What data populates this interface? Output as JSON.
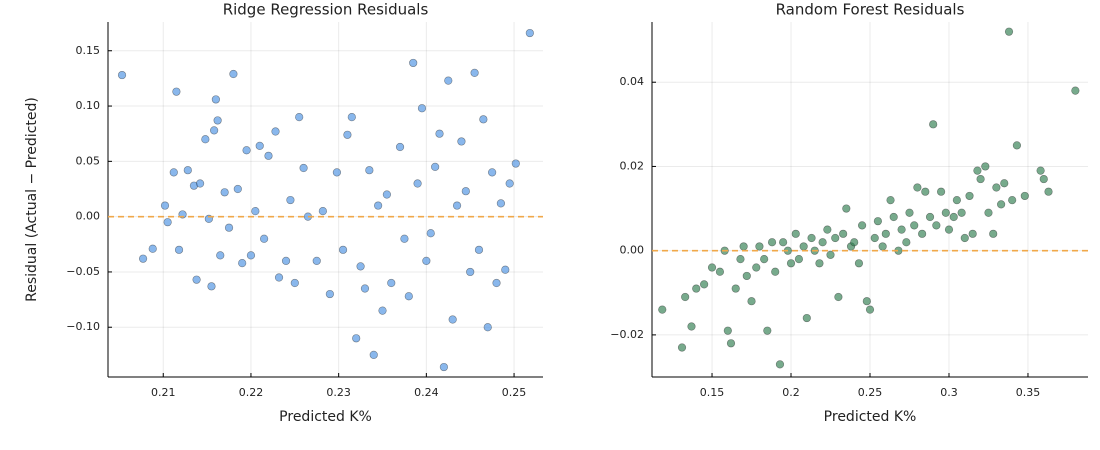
{
  "chart_data": [
    {
      "type": "scatter",
      "title": "Ridge Regression Residuals",
      "x_label": "Predicted K%",
      "y_label": "Residual (Actual − Predicted)",
      "x": [
        0.2053,
        0.2077,
        0.2088,
        0.2102,
        0.2105,
        0.2112,
        0.2115,
        0.2118,
        0.2122,
        0.2128,
        0.2135,
        0.2138,
        0.2142,
        0.2148,
        0.2152,
        0.2155,
        0.2158,
        0.216,
        0.2162,
        0.2165,
        0.217,
        0.2175,
        0.218,
        0.2185,
        0.219,
        0.2195,
        0.22,
        0.2205,
        0.221,
        0.2215,
        0.222,
        0.2228,
        0.2232,
        0.224,
        0.2245,
        0.225,
        0.2255,
        0.226,
        0.2265,
        0.2275,
        0.2282,
        0.229,
        0.2298,
        0.2305,
        0.231,
        0.2315,
        0.232,
        0.2325,
        0.233,
        0.2335,
        0.234,
        0.2345,
        0.235,
        0.2355,
        0.236,
        0.237,
        0.2375,
        0.238,
        0.2385,
        0.239,
        0.2395,
        0.24,
        0.2405,
        0.241,
        0.2415,
        0.242,
        0.2425,
        0.243,
        0.2435,
        0.244,
        0.2445,
        0.245,
        0.2455,
        0.246,
        0.2465,
        0.247,
        0.2475,
        0.248,
        0.2485,
        0.249,
        0.2495,
        0.2502,
        0.2518
      ],
      "values": [
        0.128,
        -0.038,
        -0.029,
        0.01,
        -0.005,
        0.04,
        0.113,
        -0.03,
        0.002,
        0.042,
        0.028,
        -0.057,
        0.03,
        0.07,
        -0.002,
        -0.063,
        0.078,
        0.106,
        0.087,
        -0.035,
        0.022,
        -0.01,
        0.129,
        0.025,
        -0.042,
        0.06,
        -0.035,
        0.005,
        0.064,
        -0.02,
        0.055,
        0.077,
        -0.055,
        -0.04,
        0.015,
        -0.06,
        0.09,
        0.044,
        0.0,
        -0.04,
        0.005,
        -0.07,
        0.04,
        -0.03,
        0.074,
        0.09,
        -0.11,
        -0.045,
        -0.065,
        0.042,
        -0.125,
        0.01,
        -0.085,
        0.02,
        -0.06,
        0.063,
        -0.02,
        -0.072,
        0.139,
        0.03,
        0.098,
        -0.04,
        -0.015,
        0.045,
        0.075,
        -0.136,
        0.123,
        -0.093,
        0.01,
        0.068,
        0.023,
        -0.05,
        0.13,
        -0.03,
        0.088,
        -0.1,
        0.04,
        -0.06,
        0.012,
        -0.048,
        0.03,
        0.048,
        0.166
      ],
      "color": "#4a90e2",
      "xlim": [
        0.2037,
        0.2533
      ],
      "ylim": [
        -0.145,
        0.176
      ],
      "xticks": [
        0.21,
        0.22,
        0.23,
        0.24,
        0.25
      ],
      "yticks": [
        {
          "value": -0.1,
          "label": "−0.10"
        },
        {
          "value": -0.05,
          "label": "−0.05"
        },
        {
          "value": 0,
          "label": "0.00"
        },
        {
          "value": 0.05,
          "label": "0.05"
        },
        {
          "value": 0.1,
          "label": "0.10"
        },
        {
          "value": 0.15,
          "label": "0.15"
        }
      ],
      "reference_line": {
        "y": 0,
        "color": "#f0a84a"
      },
      "grid": true
    },
    {
      "type": "scatter",
      "title": "Random Forest Residuals",
      "x_label": "Predicted K%",
      "x": [
        0.1185,
        0.131,
        0.133,
        0.137,
        0.14,
        0.145,
        0.15,
        0.155,
        0.158,
        0.16,
        0.162,
        0.165,
        0.168,
        0.17,
        0.172,
        0.175,
        0.178,
        0.18,
        0.183,
        0.185,
        0.188,
        0.19,
        0.193,
        0.195,
        0.198,
        0.2,
        0.203,
        0.205,
        0.208,
        0.21,
        0.213,
        0.215,
        0.218,
        0.22,
        0.223,
        0.225,
        0.228,
        0.23,
        0.233,
        0.235,
        0.238,
        0.24,
        0.243,
        0.245,
        0.248,
        0.25,
        0.253,
        0.255,
        0.258,
        0.26,
        0.263,
        0.265,
        0.268,
        0.27,
        0.273,
        0.275,
        0.278,
        0.28,
        0.283,
        0.285,
        0.288,
        0.29,
        0.292,
        0.295,
        0.298,
        0.3,
        0.303,
        0.305,
        0.308,
        0.31,
        0.313,
        0.315,
        0.318,
        0.32,
        0.323,
        0.325,
        0.328,
        0.33,
        0.333,
        0.335,
        0.338,
        0.34,
        0.343,
        0.348,
        0.358,
        0.36,
        0.363,
        0.38
      ],
      "values": [
        -0.014,
        -0.023,
        -0.011,
        -0.018,
        -0.009,
        -0.008,
        -0.004,
        -0.005,
        0.0,
        -0.019,
        -0.022,
        -0.009,
        -0.002,
        0.001,
        -0.006,
        -0.012,
        -0.004,
        0.001,
        -0.002,
        -0.019,
        0.002,
        -0.005,
        -0.027,
        0.002,
        0.0,
        -0.003,
        0.004,
        -0.002,
        0.001,
        -0.016,
        0.003,
        0.0,
        -0.003,
        0.002,
        0.005,
        -0.001,
        0.003,
        -0.011,
        0.004,
        0.01,
        0.001,
        0.002,
        -0.003,
        0.006,
        -0.012,
        -0.014,
        0.003,
        0.007,
        0.001,
        0.004,
        0.012,
        0.008,
        0.0,
        0.005,
        0.002,
        0.009,
        0.006,
        0.015,
        0.004,
        0.014,
        0.008,
        0.03,
        0.006,
        0.014,
        0.009,
        0.005,
        0.008,
        0.012,
        0.009,
        0.003,
        0.013,
        0.004,
        0.019,
        0.017,
        0.02,
        0.009,
        0.004,
        0.015,
        0.011,
        0.016,
        0.052,
        0.012,
        0.025,
        0.013,
        0.019,
        0.017,
        0.014,
        0.038
      ],
      "color": "#2e7d4f",
      "xlim": [
        0.112,
        0.388
      ],
      "ylim": [
        -0.03,
        0.0543
      ],
      "xticks": [
        0.15,
        0.2,
        0.25,
        0.3,
        0.35
      ],
      "yticks": [
        {
          "value": -0.02,
          "label": "−0.02"
        },
        {
          "value": 0,
          "label": "0.00"
        },
        {
          "value": 0.02,
          "label": "0.02"
        },
        {
          "value": 0.04,
          "label": "0.04"
        }
      ],
      "reference_line": {
        "y": 0,
        "color": "#f0a84a"
      },
      "grid": true
    }
  ]
}
